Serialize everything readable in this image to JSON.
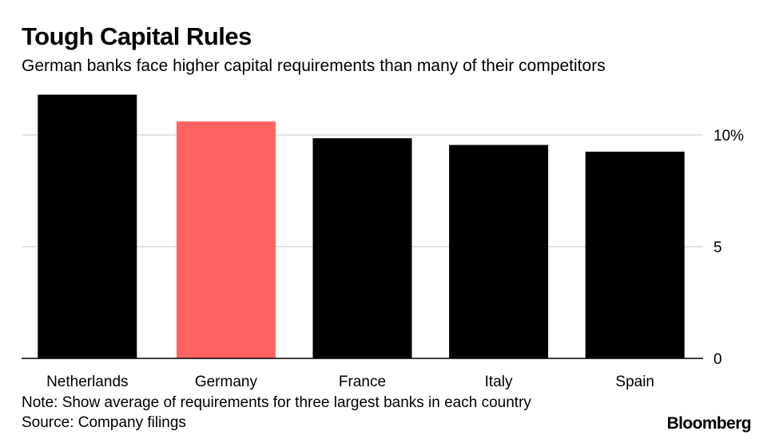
{
  "header": {
    "title": "Tough Capital Rules",
    "subtitle": "German banks face higher capital requirements than many of their competitors"
  },
  "footer": {
    "note": "Note: Show average of requirements for three largest banks in each country",
    "source": "Source: Company filings",
    "brand": "Bloomberg"
  },
  "chart_data": {
    "type": "bar",
    "categories": [
      "Netherlands",
      "Germany",
      "France",
      "Italy",
      "Spain"
    ],
    "values": [
      11.8,
      10.6,
      9.85,
      9.55,
      9.25
    ],
    "highlight_category": "Germany",
    "colors": {
      "default": "#000000",
      "highlight": "#ff6361",
      "grid": "#d9d9d9"
    },
    "ylim": [
      0,
      12
    ],
    "y_ticks": [
      0,
      5,
      10
    ],
    "y_tick_labels": [
      "0",
      "5",
      "10%"
    ],
    "y_axis_side": "right",
    "grid": true
  }
}
